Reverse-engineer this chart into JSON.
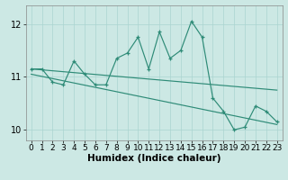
{
  "xlabel": "Humidex (Indice chaleur)",
  "x": [
    0,
    1,
    2,
    3,
    4,
    5,
    6,
    7,
    8,
    9,
    10,
    11,
    12,
    13,
    14,
    15,
    16,
    17,
    18,
    19,
    20,
    21,
    22,
    23
  ],
  "y_main": [
    11.15,
    11.15,
    10.9,
    10.85,
    11.3,
    11.05,
    10.85,
    10.85,
    11.35,
    11.45,
    11.75,
    11.15,
    11.85,
    11.35,
    11.5,
    12.05,
    11.75,
    10.6,
    10.35,
    10.0,
    10.05,
    10.45,
    10.35,
    10.15
  ],
  "y_trend1_start": 11.15,
  "y_trend1_end": 10.75,
  "y_trend2_start": 11.05,
  "y_trend2_end": 10.1,
  "ylim": [
    9.8,
    12.35
  ],
  "yticks": [
    10,
    11,
    12
  ],
  "xlim": [
    -0.5,
    23.5
  ],
  "line_color": "#2e8b77",
  "bg_color": "#cce8e4",
  "grid_color": "#aad4d0",
  "tick_fontsize": 6.5,
  "xlabel_fontsize": 7.5
}
